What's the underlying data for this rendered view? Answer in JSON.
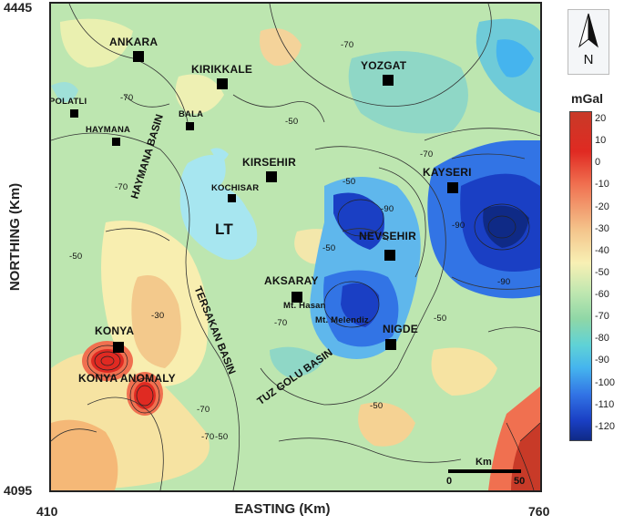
{
  "axes": {
    "y_label": "NORTHING (Km)",
    "x_label": "EASTING (Km)",
    "y_top": "4445",
    "y_bottom": "4095",
    "x_left": "410",
    "x_right": "760"
  },
  "places": {
    "ankara": "ANKARA",
    "kirikkale": "KIRIKKALE",
    "yozgat": "YOZGAT",
    "polatli": "POLATLI",
    "bala": "BALA",
    "haymana": "HAYMANA",
    "kirsehir": "KIRSEHIR",
    "kochisar": "KOCHISAR",
    "kayseri": "KAYSERI",
    "lt": "LT",
    "nevsehir": "NEVSEHIR",
    "aksaray": "AKSARAY",
    "mt_hasan": "Mt. Hasan",
    "mt_melendiz": "Mt. Melendiz",
    "konya": "KONYA",
    "nigde": "NIGDE",
    "konya_anomaly": "KONYA ANOMALY"
  },
  "basins": {
    "haymana": "HAYMANA BASIN",
    "tersakan": "TERSAKAN BASIN",
    "tuz_golu": "TUZ GOLU BASIN"
  },
  "contour_labels": [
    "-70",
    "-70",
    "-50",
    "-70",
    "-50",
    "-50",
    "-70",
    "-90",
    "-90",
    "-30",
    "-70",
    "-50",
    "-50",
    "-70",
    "-90",
    "-50",
    "-70",
    "-50"
  ],
  "north_arrow": {
    "icon": "north-arrow-icon",
    "label": "N"
  },
  "colorbar": {
    "unit": "mGal",
    "ticks": [
      "20",
      "10",
      "0",
      "-10",
      "-20",
      "-30",
      "-40",
      "-50",
      "-60",
      "-70",
      "-80",
      "-90",
      "-100",
      "-110",
      "-120"
    ],
    "colors": [
      "#c83a28",
      "#e02a22",
      "#f07050",
      "#f4c58c",
      "#f8f0b4",
      "#bfe7b0",
      "#8fd7a6",
      "#5fd2d6",
      "#45b4ee",
      "#3274e5",
      "#1a3fc4",
      "#0f2a86"
    ]
  },
  "scale_bar": {
    "unit": "Km",
    "start": "0",
    "end": "50"
  }
}
